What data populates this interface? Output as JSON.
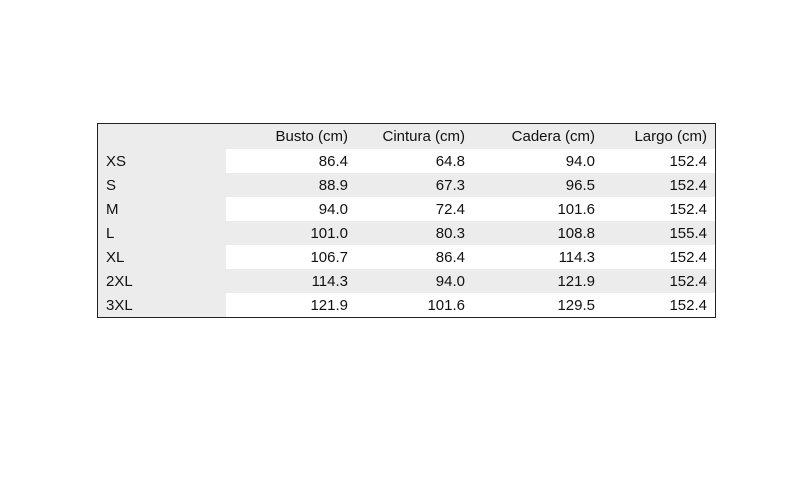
{
  "table": {
    "headers": [
      "",
      "Busto (cm)",
      "Cintura (cm)",
      "Cadera (cm)",
      "Largo (cm)"
    ],
    "rows": [
      [
        "XS",
        "86.4",
        "64.8",
        "94.0",
        "152.4"
      ],
      [
        "S",
        "88.9",
        "67.3",
        "96.5",
        "152.4"
      ],
      [
        "M",
        "94.0",
        "72.4",
        "101.6",
        "152.4"
      ],
      [
        "L",
        "101.0",
        "80.3",
        "108.8",
        "155.4"
      ],
      [
        "XL",
        "106.7",
        "86.4",
        "114.3",
        "152.4"
      ],
      [
        "2XL",
        "114.3",
        "94.0",
        "121.9",
        "152.4"
      ],
      [
        "3XL",
        "121.9",
        "101.6",
        "129.5",
        "152.4"
      ]
    ]
  }
}
